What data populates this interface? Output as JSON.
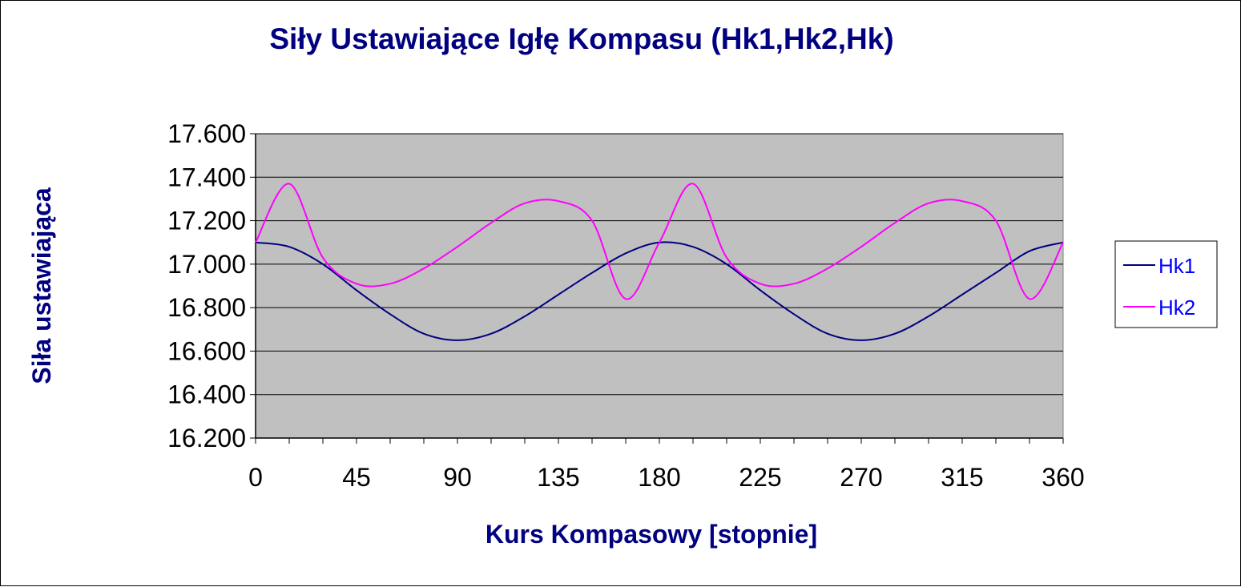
{
  "chart_data": {
    "type": "line",
    "title": "Siły Ustawiające Igłę Kompasu (Hk1,Hk2,Hk)",
    "xlabel": "Kurs Kompasowy  [stopnie]",
    "ylabel": "Siła ustawiająca",
    "xlim": [
      0,
      360
    ],
    "ylim": [
      16.2,
      17.6
    ],
    "x_ticks": [
      0,
      45,
      90,
      135,
      180,
      225,
      270,
      315,
      360
    ],
    "x_tick_labels": [
      "0",
      "45",
      "90",
      "135",
      "180",
      "225",
      "270",
      "315",
      "360"
    ],
    "y_ticks": [
      16.2,
      16.4,
      16.6,
      16.8,
      17.0,
      17.2,
      17.4,
      17.6
    ],
    "y_tick_labels": [
      "16.200",
      "16.400",
      "16.600",
      "16.800",
      "17.000",
      "17.200",
      "17.400",
      "17.600"
    ],
    "grid": true,
    "legend_position": "right",
    "plot_background": "#c0c0c0",
    "series": [
      {
        "name": "Hk1",
        "color": "#000080",
        "x": [
          0,
          15,
          30,
          45,
          60,
          75,
          90,
          105,
          120,
          135,
          150,
          165,
          180,
          195,
          210,
          225,
          240,
          255,
          270,
          285,
          300,
          315,
          330,
          345,
          360
        ],
        "values": [
          17.1,
          17.08,
          17.0,
          16.88,
          16.77,
          16.68,
          16.65,
          16.68,
          16.76,
          16.86,
          16.96,
          17.05,
          17.1,
          17.08,
          17.0,
          16.88,
          16.77,
          16.68,
          16.65,
          16.68,
          16.76,
          16.86,
          16.96,
          17.06,
          17.1
        ]
      },
      {
        "name": "Hk2",
        "color": "#ff00ff",
        "x": [
          0,
          15,
          30,
          45,
          60,
          75,
          90,
          105,
          120,
          135,
          150,
          165,
          180,
          195,
          210,
          225,
          240,
          255,
          270,
          285,
          300,
          315,
          330,
          345,
          360
        ],
        "values": [
          17.1,
          17.37,
          17.03,
          16.91,
          16.91,
          16.98,
          17.08,
          17.19,
          17.28,
          17.29,
          17.2,
          16.84,
          17.1,
          17.37,
          17.03,
          16.91,
          16.91,
          16.98,
          17.08,
          17.19,
          17.28,
          17.29,
          17.2,
          16.84,
          17.1
        ]
      }
    ]
  },
  "colors": {
    "title": "#000080",
    "axis_title": "#000080",
    "legend_text": "#0000ff",
    "gridline": "#000000",
    "plot_border": "#808080"
  }
}
